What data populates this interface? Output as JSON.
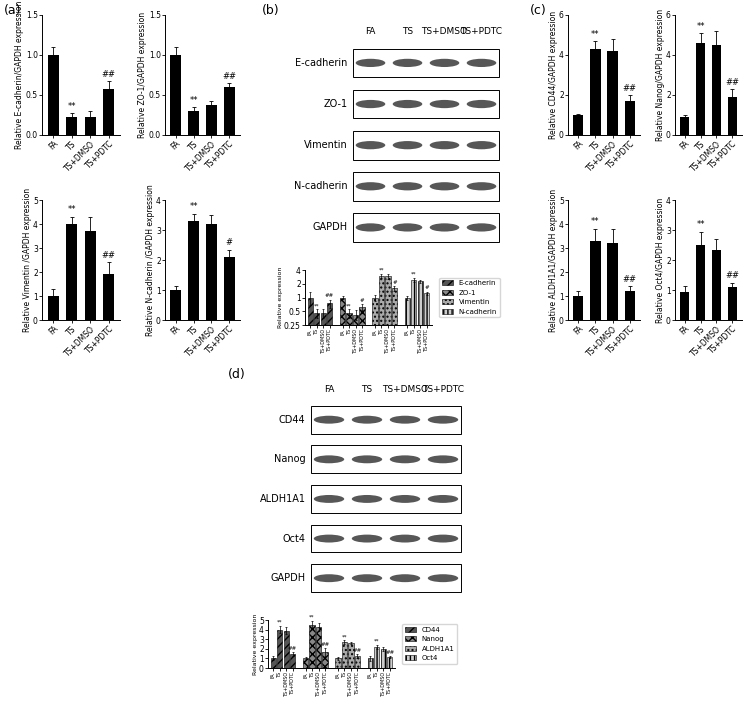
{
  "panel_labels": [
    "(a)",
    "(b)",
    "(c)",
    "(d)"
  ],
  "chart_data": [
    {
      "type": "bar",
      "categories": [
        "FA",
        "TS",
        "TS+DMSO",
        "TS+PDTC"
      ],
      "values": [
        1.0,
        0.22,
        0.22,
        0.57
      ],
      "errors": [
        0.1,
        0.05,
        0.08,
        0.1
      ],
      "annotations": [
        null,
        "**",
        null,
        "##"
      ],
      "ylabel": "Relative E-cadherin/GAPDH expression",
      "ylim": [
        0,
        1.5
      ],
      "yticks": [
        {
          "value": 0,
          "label": "0.0"
        },
        {
          "value": 0.5,
          "label": "0.5"
        },
        {
          "value": 1.0,
          "label": "1.0"
        },
        {
          "value": 1.5,
          "label": "1.5"
        }
      ],
      "color": "#000000"
    },
    {
      "type": "bar",
      "categories": [
        "FA",
        "TS",
        "TS+DMSO",
        "TS+PDTC"
      ],
      "values": [
        1.0,
        0.3,
        0.38,
        0.6
      ],
      "errors": [
        0.1,
        0.05,
        0.04,
        0.05
      ],
      "annotations": [
        null,
        "**",
        null,
        "##"
      ],
      "ylabel": "Relative ZO-1/GAPDH expression",
      "ylim": [
        0,
        1.5
      ],
      "yticks": [
        {
          "value": 0,
          "label": "0.0"
        },
        {
          "value": 0.5,
          "label": "0.5"
        },
        {
          "value": 1.0,
          "label": "1.0"
        },
        {
          "value": 1.5,
          "label": "1.5"
        }
      ],
      "color": "#000000"
    },
    {
      "type": "bar",
      "categories": [
        "FA",
        "TS",
        "TS+DMSO",
        "TS+PDTC"
      ],
      "values": [
        1.0,
        4.0,
        3.7,
        1.9
      ],
      "errors": [
        0.3,
        0.3,
        0.6,
        0.5
      ],
      "annotations": [
        null,
        "**",
        null,
        "##"
      ],
      "ylabel": "Relative Vimentin /GAPDH expression",
      "ylim": [
        0,
        5
      ],
      "yticks": [
        0,
        1,
        2,
        3,
        4,
        5
      ],
      "color": "#000000"
    },
    {
      "type": "bar",
      "categories": [
        "FA",
        "TS",
        "TS+DMSO",
        "TS+PDTC"
      ],
      "values": [
        1.0,
        3.3,
        3.2,
        2.1
      ],
      "errors": [
        0.15,
        0.25,
        0.3,
        0.25
      ],
      "annotations": [
        null,
        "**",
        null,
        "#"
      ],
      "ylabel": "Relative N-cadherin /GAPDH expression",
      "ylim": [
        0,
        4
      ],
      "yticks": [
        0,
        1,
        2,
        3,
        4
      ],
      "color": "#000000"
    },
    {
      "type": "grouped_bar",
      "categories": [
        "FA",
        "TS",
        "TS+DMSO",
        "TS+PDTC"
      ],
      "ylabel": "Relative expression",
      "log": "y",
      "ylim": [
        0.25,
        4
      ],
      "yticks": [
        0.25,
        0.5,
        1,
        2,
        4
      ],
      "legend": "right",
      "series": [
        {
          "name": "E-cadherin",
          "color": "#555555",
          "values": [
            1.0,
            0.45,
            0.45,
            0.75
          ],
          "errors": [
            0.3,
            0.1,
            0.1,
            0.15
          ],
          "annotations": [
            null,
            "**",
            null,
            "##"
          ]
        },
        {
          "name": "ZO-1",
          "color": "#888888",
          "values": [
            1.0,
            0.45,
            0.42,
            0.62
          ],
          "errors": [
            0.08,
            0.1,
            0.1,
            0.1
          ],
          "annotations": [
            null,
            "**",
            null,
            "#"
          ]
        },
        {
          "name": "Vimentin",
          "color": "#aaaaaa",
          "values": [
            1.0,
            3.0,
            2.9,
            1.6
          ],
          "errors": [
            0.15,
            0.35,
            0.3,
            0.2
          ],
          "annotations": [
            null,
            "**",
            null,
            "#"
          ]
        },
        {
          "name": "N-cadherin",
          "color": "#cccccc",
          "values": [
            1.0,
            2.4,
            2.25,
            1.25
          ],
          "errors": [
            0.1,
            0.25,
            0.15,
            0.1
          ],
          "annotations": [
            null,
            "**",
            null,
            "#"
          ]
        }
      ]
    },
    {
      "type": "bar",
      "categories": [
        "FA",
        "TS",
        "TS+DMSO",
        "TS+PDTC"
      ],
      "values": [
        1.0,
        4.3,
        4.2,
        1.7
      ],
      "errors": [
        0.05,
        0.4,
        0.6,
        0.3
      ],
      "annotations": [
        null,
        "**",
        null,
        "##"
      ],
      "ylabel": "Relative CD44/GAPDH expression",
      "ylim": [
        0,
        6
      ],
      "yticks": [
        0,
        2,
        4,
        6
      ],
      "color": "#000000"
    },
    {
      "type": "bar",
      "categories": [
        "FA",
        "TS",
        "TS+DMSO",
        "TS+PDTC"
      ],
      "values": [
        0.9,
        4.6,
        4.5,
        1.9
      ],
      "errors": [
        0.1,
        0.5,
        0.7,
        0.4
      ],
      "annotations": [
        null,
        "**",
        null,
        "##"
      ],
      "ylabel": "Relative Nanog/GAPDH expression",
      "ylim": [
        0,
        6
      ],
      "yticks": [
        0,
        2,
        4,
        6
      ],
      "color": "#000000"
    },
    {
      "type": "bar",
      "categories": [
        "FA",
        "TS",
        "TS+DMSO",
        "TS+PDTC"
      ],
      "values": [
        1.0,
        3.3,
        3.2,
        1.2
      ],
      "errors": [
        0.2,
        0.5,
        0.6,
        0.2
      ],
      "annotations": [
        null,
        "**",
        null,
        "##"
      ],
      "ylabel": "Relative ALDH1A1/GAPDH expression",
      "ylim": [
        0,
        5
      ],
      "yticks": [
        0,
        1,
        2,
        3,
        4,
        5
      ],
      "color": "#000000"
    },
    {
      "type": "bar",
      "categories": [
        "FA",
        "TS",
        "TS+DMSO",
        "TS+PDTC"
      ],
      "values": [
        0.95,
        2.5,
        2.35,
        1.1
      ],
      "errors": [
        0.2,
        0.45,
        0.35,
        0.15
      ],
      "annotations": [
        null,
        "**",
        null,
        "##"
      ],
      "ylabel": "Relative Oct4/GAPDH expression",
      "ylim": [
        0,
        4
      ],
      "yticks": [
        0,
        1,
        2,
        3,
        4
      ],
      "color": "#000000"
    },
    {
      "type": "grouped_bar",
      "categories": [
        "FA",
        "TS",
        "TS+DMSO",
        "TS+PDTC"
      ],
      "ylabel": "Relative expression",
      "ylim": [
        0,
        5
      ],
      "yticks": [
        0,
        1,
        2,
        3,
        4,
        5
      ],
      "legend": "right",
      "series": [
        {
          "name": "CD44",
          "color": "#555555",
          "values": [
            1.0,
            4.0,
            3.9,
            1.45
          ],
          "errors": [
            0.2,
            0.4,
            0.35,
            0.2
          ],
          "annotations": [
            null,
            "**",
            null,
            "##"
          ]
        },
        {
          "name": "Nanog",
          "color": "#888888",
          "values": [
            1.0,
            4.5,
            4.3,
            1.7
          ],
          "errors": [
            0.1,
            0.4,
            0.4,
            0.4
          ],
          "annotations": [
            null,
            "**",
            null,
            "##"
          ]
        },
        {
          "name": "ALDH1A1",
          "color": "#aaaaaa",
          "values": [
            1.0,
            2.7,
            2.6,
            1.25
          ],
          "errors": [
            0.15,
            0.2,
            0.15,
            0.2
          ],
          "annotations": [
            null,
            "**",
            null,
            "##"
          ]
        },
        {
          "name": "Oct4",
          "color": "#cccccc",
          "values": [
            1.0,
            2.2,
            1.95,
            1.15
          ],
          "errors": [
            0.25,
            0.2,
            0.2,
            0.15
          ],
          "annotations": [
            null,
            "**",
            null,
            "##"
          ]
        }
      ]
    }
  ],
  "blots": [
    {
      "lanes": [
        "FA",
        "TS",
        "TS+DMSO",
        "TS+PDTC"
      ],
      "rows": [
        "E-cadherin",
        "ZO-1",
        "Vimentin",
        "N-cadherin",
        "GAPDH"
      ]
    },
    {
      "lanes": [
        "FA",
        "TS",
        "TS+DMSO",
        "TS+PDTC"
      ],
      "rows": [
        "CD44",
        "Nanog",
        "ALDH1A1",
        "Oct4",
        "GAPDH"
      ]
    }
  ]
}
